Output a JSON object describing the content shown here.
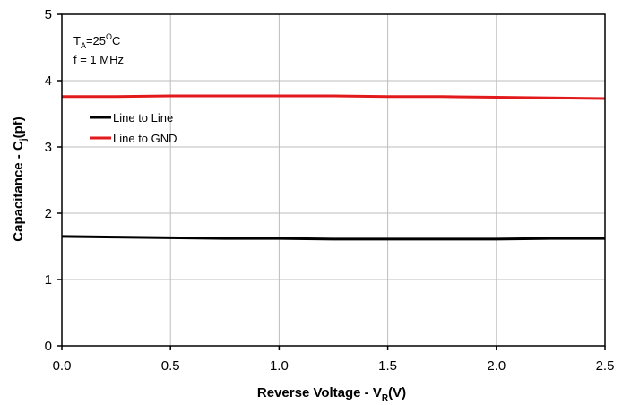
{
  "chart_data": {
    "type": "line",
    "x_axis": {
      "title_main": "Reverse Voltage - V",
      "title_sub": "R",
      "title_tail": "(V)",
      "xlim": [
        0.0,
        2.5
      ],
      "ticks": [
        0.0,
        0.5,
        1.0,
        1.5,
        2.0,
        2.5
      ],
      "tick_labels": [
        "0.0",
        "0.5",
        "1.0",
        "1.5",
        "2.0",
        "2.5"
      ]
    },
    "y_axis": {
      "title_main": "Capacitance - C",
      "title_sub": "j",
      "title_tail": "(pf)",
      "ylim": [
        0,
        5
      ],
      "ticks": [
        0,
        1,
        2,
        3,
        4,
        5
      ],
      "tick_labels": [
        "0",
        "1",
        "2",
        "3",
        "4",
        "5"
      ]
    },
    "grid": true,
    "conditions": {
      "line1_main": "T",
      "line1_sub": "A",
      "line1_mid": "=25",
      "line1_sup": "O",
      "line1_tail": "C",
      "line2": "f = 1 MHz"
    },
    "legend": {
      "placement": "upper-left"
    },
    "series": [
      {
        "name": "Line to Line",
        "color": "#000000",
        "x": [
          0.0,
          0.25,
          0.5,
          0.75,
          1.0,
          1.25,
          1.5,
          1.75,
          2.0,
          2.25,
          2.5
        ],
        "y": [
          1.65,
          1.64,
          1.63,
          1.62,
          1.62,
          1.61,
          1.61,
          1.61,
          1.61,
          1.62,
          1.62
        ]
      },
      {
        "name": "Line to GND",
        "color": "#e31a1c",
        "x": [
          0.0,
          0.25,
          0.5,
          0.75,
          1.0,
          1.25,
          1.5,
          1.75,
          2.0,
          2.25,
          2.5
        ],
        "y": [
          3.76,
          3.76,
          3.77,
          3.77,
          3.77,
          3.77,
          3.76,
          3.76,
          3.75,
          3.74,
          3.73
        ]
      }
    ]
  }
}
